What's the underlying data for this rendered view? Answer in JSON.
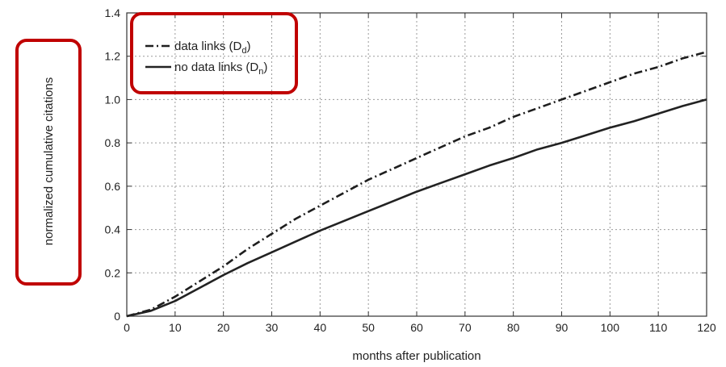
{
  "chart_data": {
    "type": "line",
    "xlabel": "months after publication",
    "ylabel": "normalized cumulative citations",
    "xlim": [
      0,
      120
    ],
    "ylim": [
      0,
      1.4
    ],
    "xticks": [
      0,
      10,
      20,
      30,
      40,
      50,
      60,
      70,
      80,
      90,
      100,
      110,
      120
    ],
    "yticks": [
      0,
      0.2,
      0.4,
      0.6,
      0.8,
      1.0,
      1.2,
      1.4
    ],
    "ytick_labels": [
      "0",
      "0.2",
      "0.4",
      "0.6",
      "0.8",
      "1.0",
      "1.2",
      "1.4"
    ],
    "grid": true,
    "legend_position": "top-left",
    "series": [
      {
        "name": "data links",
        "legend_symbol": "D",
        "legend_subscript": "d",
        "line_style": "dash-dot",
        "color": "#1e1e1e",
        "x": [
          0,
          5,
          10,
          15,
          20,
          25,
          30,
          35,
          40,
          45,
          50,
          55,
          60,
          65,
          70,
          75,
          80,
          85,
          90,
          95,
          100,
          105,
          110,
          115,
          120
        ],
        "y": [
          0.0,
          0.03,
          0.09,
          0.16,
          0.23,
          0.31,
          0.38,
          0.45,
          0.51,
          0.57,
          0.63,
          0.68,
          0.73,
          0.78,
          0.83,
          0.87,
          0.92,
          0.96,
          1.0,
          1.04,
          1.08,
          1.12,
          1.15,
          1.19,
          1.22
        ]
      },
      {
        "name": "no data links",
        "legend_symbol": "D",
        "legend_subscript": "n",
        "line_style": "solid",
        "color": "#222222",
        "x": [
          0,
          5,
          10,
          15,
          20,
          25,
          30,
          35,
          40,
          45,
          50,
          55,
          60,
          65,
          70,
          75,
          80,
          85,
          90,
          95,
          100,
          105,
          110,
          115,
          120
        ],
        "y": [
          0.0,
          0.025,
          0.07,
          0.13,
          0.19,
          0.245,
          0.295,
          0.345,
          0.395,
          0.44,
          0.485,
          0.53,
          0.575,
          0.615,
          0.655,
          0.695,
          0.73,
          0.77,
          0.8,
          0.835,
          0.87,
          0.9,
          0.935,
          0.97,
          1.0
        ]
      }
    ],
    "highlight_color": "#c00000"
  }
}
